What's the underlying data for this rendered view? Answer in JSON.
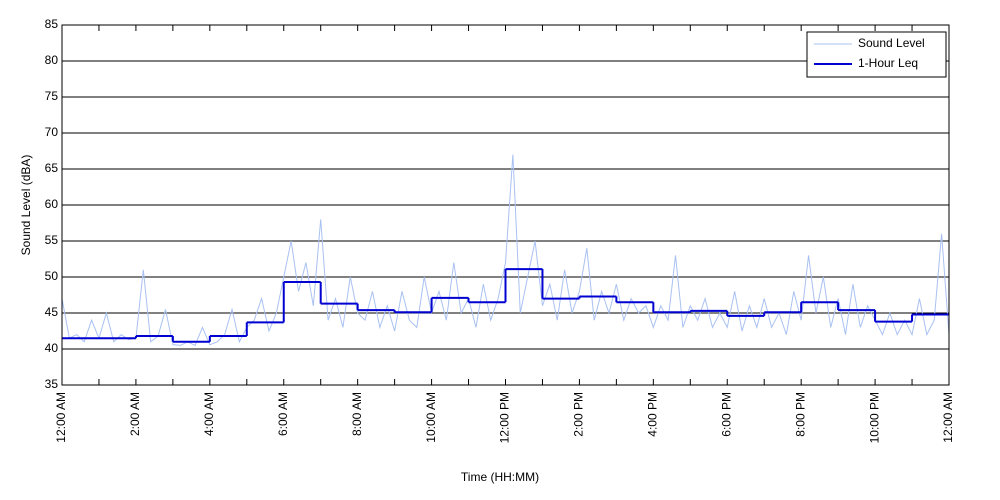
{
  "chart_data": {
    "type": "line",
    "xlabel": "Time (HH:MM)",
    "ylabel": "Sound Level (dBA)",
    "xlim": [
      0,
      24
    ],
    "xticks": [
      {
        "value": 0,
        "label": "12:00 AM"
      },
      {
        "value": 2,
        "label": "2:00 AM"
      },
      {
        "value": 4,
        "label": "4:00 AM"
      },
      {
        "value": 6,
        "label": "6:00 AM"
      },
      {
        "value": 8,
        "label": "8:00 AM"
      },
      {
        "value": 10,
        "label": "10:00 AM"
      },
      {
        "value": 12,
        "label": "12:00 PM"
      },
      {
        "value": 14,
        "label": "2:00 PM"
      },
      {
        "value": 16,
        "label": "4:00 PM"
      },
      {
        "value": 18,
        "label": "6:00 PM"
      },
      {
        "value": 20,
        "label": "8:00 PM"
      },
      {
        "value": 22,
        "label": "10:00 PM"
      },
      {
        "value": 24,
        "label": "12:00 AM"
      }
    ],
    "xminor_ticks": [
      1,
      3,
      5,
      7,
      9,
      11,
      13,
      15,
      17,
      19,
      21,
      23
    ],
    "ylim": [
      35,
      85
    ],
    "yticks": [
      35,
      40,
      45,
      50,
      55,
      60,
      65,
      70,
      75,
      80,
      85
    ],
    "grid": true,
    "legend": "upper right",
    "series": [
      {
        "name": "Sound Level",
        "color": "#a9c1f2",
        "style": "line",
        "x": [
          0,
          0.2,
          0.4,
          0.6,
          0.8,
          1,
          1.2,
          1.4,
          1.6,
          1.8,
          2,
          2.2,
          2.4,
          2.6,
          2.8,
          3,
          3.2,
          3.4,
          3.6,
          3.8,
          4,
          4.2,
          4.4,
          4.6,
          4.8,
          5,
          5.2,
          5.4,
          5.6,
          5.8,
          6,
          6.2,
          6.4,
          6.6,
          6.8,
          7,
          7.2,
          7.4,
          7.6,
          7.8,
          8,
          8.2,
          8.4,
          8.6,
          8.8,
          9,
          9.2,
          9.4,
          9.6,
          9.8,
          10,
          10.2,
          10.4,
          10.6,
          10.8,
          11,
          11.2,
          11.4,
          11.6,
          11.8,
          12,
          12.2,
          12.4,
          12.6,
          12.8,
          13,
          13.2,
          13.4,
          13.6,
          13.8,
          14,
          14.2,
          14.4,
          14.6,
          14.8,
          15,
          15.2,
          15.4,
          15.6,
          15.8,
          16,
          16.2,
          16.4,
          16.6,
          16.8,
          17,
          17.2,
          17.4,
          17.6,
          17.8,
          18,
          18.2,
          18.4,
          18.6,
          18.8,
          19,
          19.2,
          19.4,
          19.6,
          19.8,
          20,
          20.2,
          20.4,
          20.6,
          20.8,
          21,
          21.2,
          21.4,
          21.6,
          21.8,
          22,
          22.2,
          22.4,
          22.6,
          22.8,
          23,
          23.2,
          23.4,
          23.6,
          23.8,
          24
        ],
        "values": [
          47,
          41.5,
          42,
          41,
          44,
          41.5,
          45,
          41,
          42,
          41.3,
          41.5,
          51,
          41,
          41.8,
          45.5,
          40.6,
          40.5,
          41,
          40.5,
          43,
          40.6,
          41,
          42,
          45.5,
          41,
          43,
          44,
          47,
          42.5,
          45,
          50,
          55,
          48,
          52,
          46,
          58,
          44,
          47,
          43,
          50,
          45,
          44,
          48,
          43,
          46,
          42.5,
          48,
          44,
          43,
          50,
          45,
          48,
          44,
          52,
          45,
          47,
          43,
          49,
          44,
          47,
          52,
          67,
          45,
          50,
          55,
          46,
          49,
          44,
          51,
          45,
          48,
          54,
          44,
          48,
          45,
          49,
          44,
          47,
          45,
          46,
          43,
          46,
          44,
          53,
          43,
          46,
          44,
          47,
          43,
          45,
          43,
          48,
          42.5,
          46,
          43,
          47,
          43,
          45,
          42,
          48,
          44,
          53,
          45,
          50,
          43,
          47,
          42,
          49,
          43,
          46,
          44,
          42,
          45,
          42,
          44,
          42,
          47,
          42,
          44,
          56,
          42
        ]
      },
      {
        "name": "1-Hour Leq",
        "color": "#0000d0",
        "style": "step",
        "x": [
          0,
          1,
          2,
          3,
          4,
          5,
          6,
          7,
          8,
          9,
          10,
          11,
          12,
          13,
          14,
          15,
          16,
          17,
          18,
          19,
          20,
          21,
          22,
          23
        ],
        "values": [
          41.5,
          41.5,
          41.8,
          41,
          41.8,
          43.7,
          49.3,
          46.3,
          45.4,
          45.1,
          47.1,
          46.5,
          51.1,
          47,
          47.3,
          46.5,
          45.1,
          45.3,
          44.6,
          45.1,
          46.5,
          45.4,
          43.8,
          44.8
        ]
      }
    ]
  }
}
